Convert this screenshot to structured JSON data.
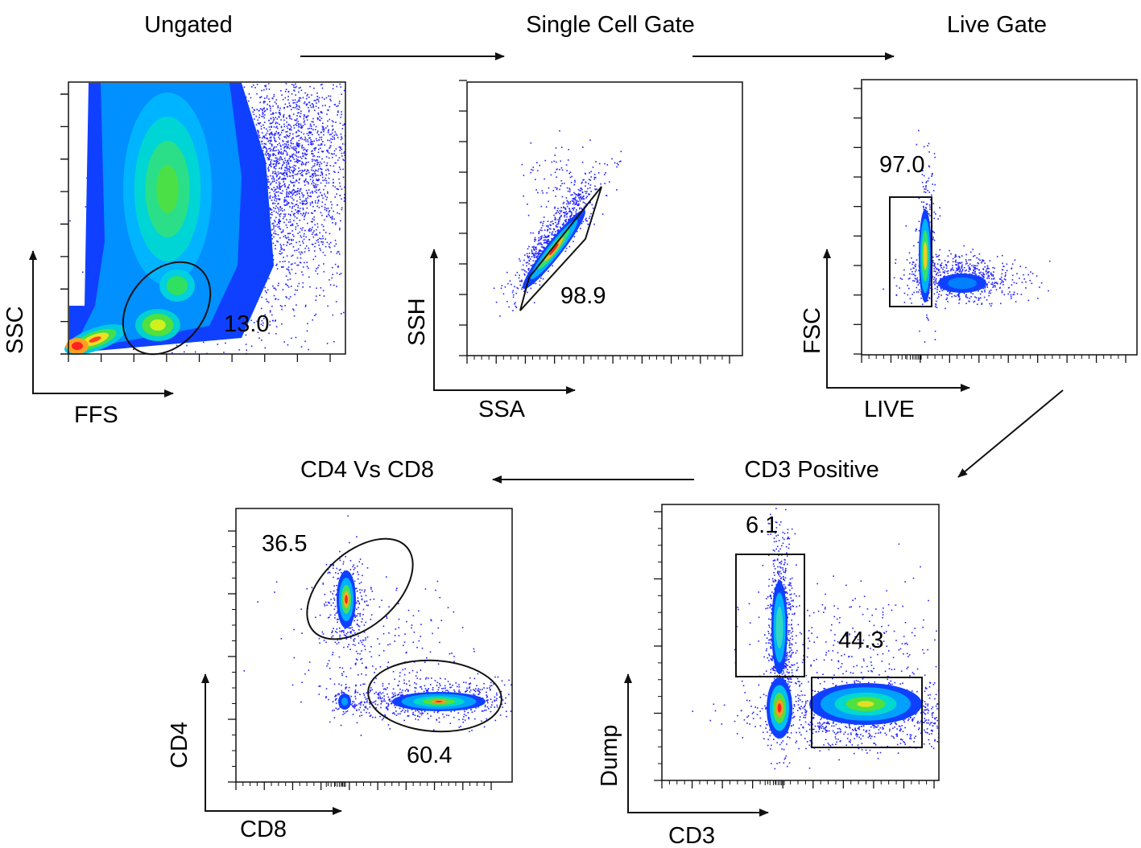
{
  "chart_data": [
    {
      "type": "scatter",
      "title": "Ungated",
      "xlabel": "FFS",
      "ylabel": "SSC",
      "xlim": [
        0,
        100
      ],
      "ylim": [
        0,
        100
      ],
      "gates": [
        {
          "shape": "ellipse",
          "value": "13.0"
        }
      ]
    },
    {
      "type": "scatter",
      "title": "Single Cell Gate",
      "xlabel": "SSA",
      "ylabel": "SSH",
      "xlim": [
        0,
        100
      ],
      "ylim": [
        0,
        100
      ],
      "gates": [
        {
          "shape": "polygon",
          "value": "98.9"
        }
      ]
    },
    {
      "type": "scatter",
      "title": "Live Gate",
      "xlabel": "LIVE",
      "ylabel": "FSC",
      "xlim": [
        0,
        100
      ],
      "ylim": [
        0,
        100
      ],
      "gates": [
        {
          "shape": "rectangle",
          "value": "97.0"
        }
      ]
    },
    {
      "type": "scatter",
      "title": "CD3 Positive",
      "xlabel": "CD3",
      "ylabel": "Dump",
      "xlim": [
        0,
        100
      ],
      "ylim": [
        0,
        100
      ],
      "gates": [
        {
          "shape": "rectangle",
          "value": "6.1"
        },
        {
          "shape": "rectangle",
          "value": "44.3"
        }
      ]
    },
    {
      "type": "scatter",
      "title": "CD4 Vs CD8",
      "xlabel": "CD8",
      "ylabel": "CD4",
      "xlim": [
        0,
        100
      ],
      "ylim": [
        0,
        100
      ],
      "gates": [
        {
          "shape": "ellipse",
          "value": "36.5"
        },
        {
          "shape": "ellipse",
          "value": "60.4"
        }
      ]
    }
  ],
  "flow": [
    "Ungated",
    "Single Cell Gate",
    "Live Gate",
    "CD3 Positive",
    "CD4 Vs CD8"
  ],
  "colors": {
    "low": "#1a1aff",
    "mid": "#00c8ff",
    "high": "#30e060",
    "peak": "#ff2020"
  }
}
